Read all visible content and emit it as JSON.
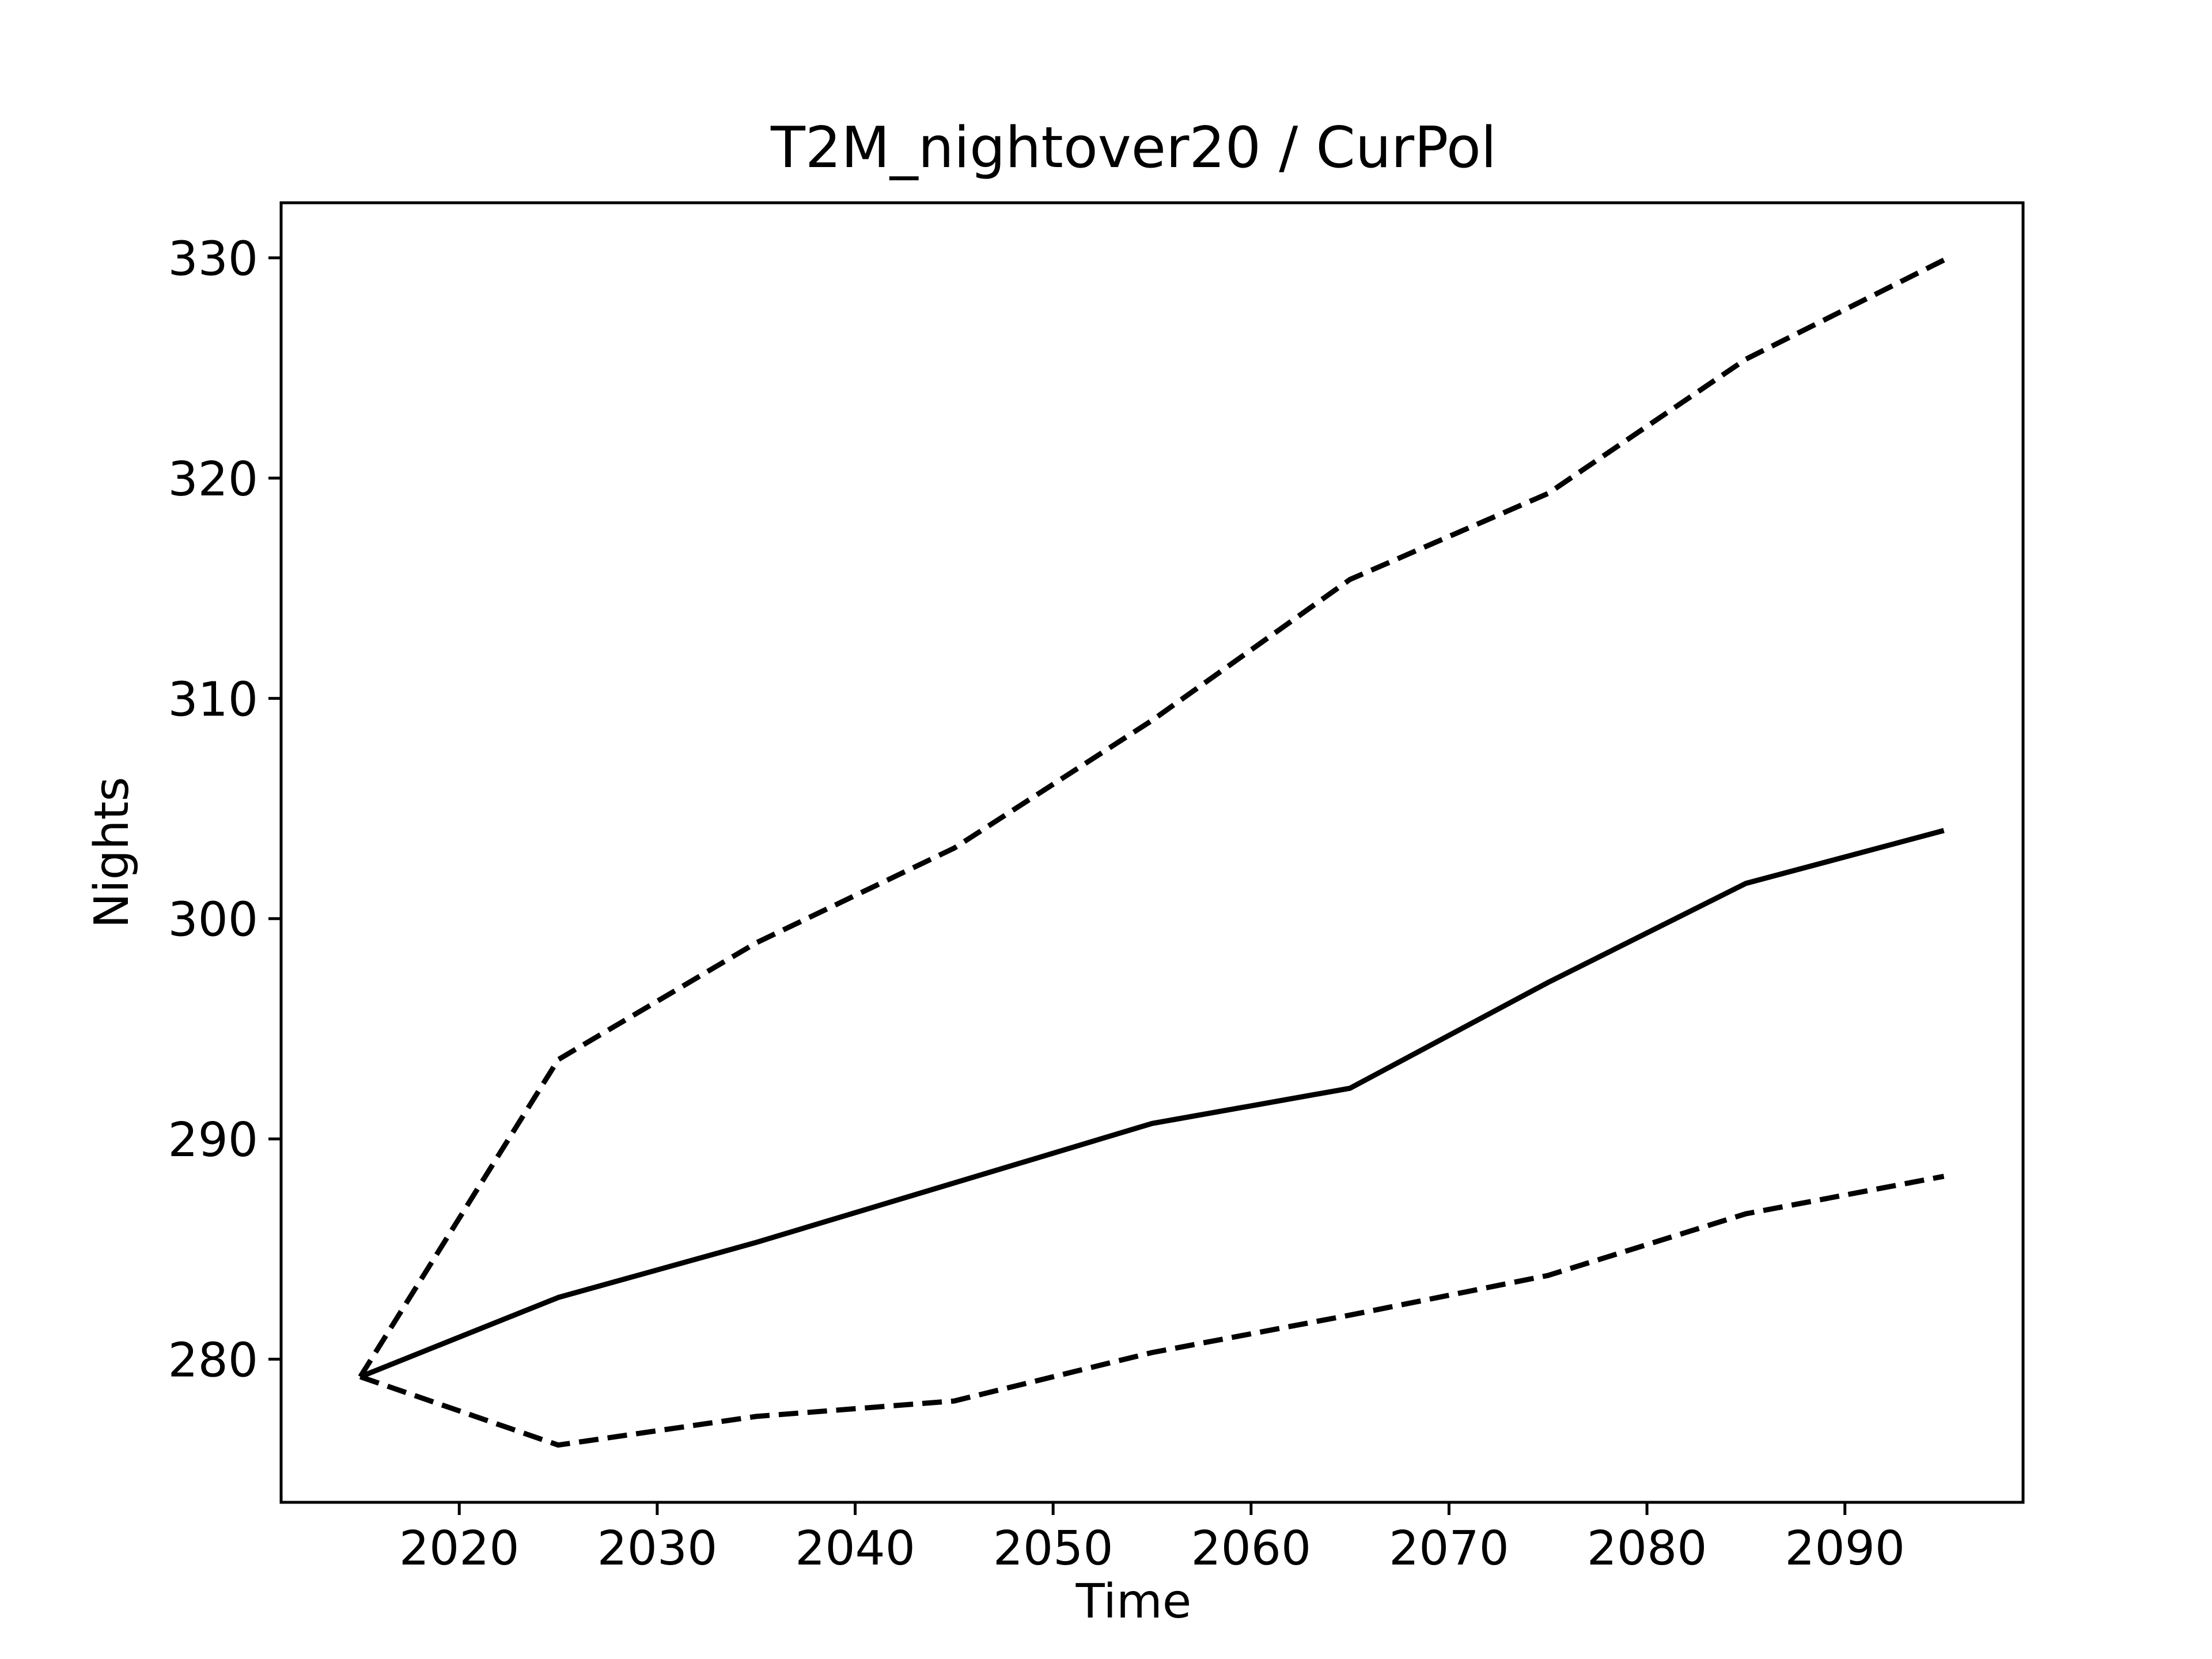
{
  "chart_data": {
    "type": "line",
    "title": "T2M_nightover20 / CurPol",
    "xlabel": "Time",
    "ylabel": "Nights",
    "xlim": [
      2011,
      2099
    ],
    "ylim": [
      273.5,
      332.5
    ],
    "xticks": [
      2020,
      2030,
      2040,
      2050,
      2060,
      2070,
      2080,
      2090
    ],
    "yticks": [
      280,
      290,
      300,
      310,
      320,
      330
    ],
    "x": [
      2015,
      2025,
      2035,
      2045,
      2055,
      2065,
      2075,
      2085,
      2095
    ],
    "grid": false,
    "series": [
      {
        "style": "solid",
        "color": "#000000",
        "values": [
          279.2,
          282.8,
          285.3,
          288.0,
          290.7,
          292.3,
          297.1,
          301.6,
          304.0
        ]
      },
      {
        "style": "dashed",
        "color": "#000000",
        "values": [
          279.2,
          293.6,
          298.9,
          303.2,
          309.0,
          315.4,
          319.3,
          325.4,
          329.9
        ]
      },
      {
        "style": "dashed",
        "color": "#000000",
        "values": [
          279.2,
          276.1,
          277.4,
          278.1,
          280.3,
          282.0,
          283.8,
          286.6,
          288.3
        ]
      }
    ]
  }
}
